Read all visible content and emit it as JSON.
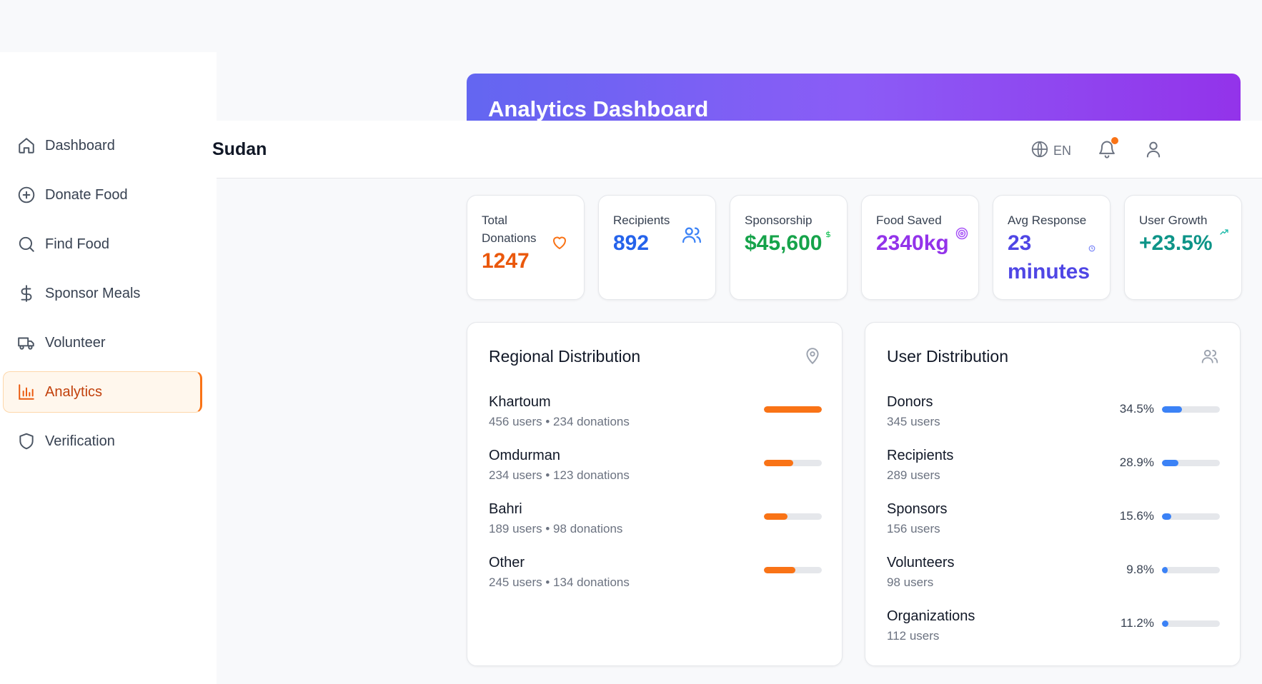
{
  "sidebar": {
    "items": [
      {
        "label": "Dashboard",
        "icon": "home-icon"
      },
      {
        "label": "Donate Food",
        "icon": "plus-circle-icon"
      },
      {
        "label": "Find Food",
        "icon": "search-icon"
      },
      {
        "label": "Sponsor Meals",
        "icon": "dollar-icon"
      },
      {
        "label": "Volunteer",
        "icon": "truck-icon"
      },
      {
        "label": "Analytics",
        "icon": "bar-chart-icon",
        "active": true
      },
      {
        "label": "Verification",
        "icon": "shield-icon"
      }
    ]
  },
  "header": {
    "brand_partial": "Sudan",
    "language": "EN",
    "notification_badge": true
  },
  "banner": {
    "title": "Analytics Dashboard"
  },
  "stats": [
    {
      "label": "Total Donations",
      "value": "1247",
      "color": "#ea580c",
      "icon": "heart-icon"
    },
    {
      "label": "Recipients",
      "value": "892",
      "color": "#2563eb",
      "icon": "users-icon"
    },
    {
      "label": "Sponsorship",
      "value": "$45,600",
      "color": "#16a34a",
      "icon": "dollar-icon"
    },
    {
      "label": "Food Saved",
      "value": "2340kg",
      "color": "#9333ea",
      "icon": "target-icon"
    },
    {
      "label": "Avg Response",
      "value": "23 minutes",
      "value_line1": "23",
      "value_line2": "minutes",
      "color": "#4f46e5",
      "icon": "clock-icon"
    },
    {
      "label": "User Growth",
      "value": "+23.5%",
      "color": "#0d9488",
      "icon": "trending-up-icon"
    }
  ],
  "regional": {
    "title": "Regional Distribution",
    "accent": "#f97316",
    "rows": [
      {
        "name": "Khartoum",
        "sub": "456 users • 234 donations",
        "fraction": 1.0
      },
      {
        "name": "Omdurman",
        "sub": "234 users • 123 donations",
        "fraction": 0.51
      },
      {
        "name": "Bahri",
        "sub": "189 users • 98 donations",
        "fraction": 0.41
      },
      {
        "name": "Other",
        "sub": "245 users • 134 donations",
        "fraction": 0.54
      }
    ]
  },
  "users": {
    "title": "User Distribution",
    "accent": "#3b82f6",
    "rows": [
      {
        "name": "Donors",
        "sub": "345 users",
        "pct": "34.5%",
        "fraction": 0.345
      },
      {
        "name": "Recipients",
        "sub": "289 users",
        "pct": "28.9%",
        "fraction": 0.289
      },
      {
        "name": "Sponsors",
        "sub": "156 users",
        "pct": "15.6%",
        "fraction": 0.156
      },
      {
        "name": "Volunteers",
        "sub": "98 users",
        "pct": "9.8%",
        "fraction": 0.098
      },
      {
        "name": "Organizations",
        "sub": "112 users",
        "pct": "11.2%",
        "fraction": 0.112
      }
    ]
  }
}
